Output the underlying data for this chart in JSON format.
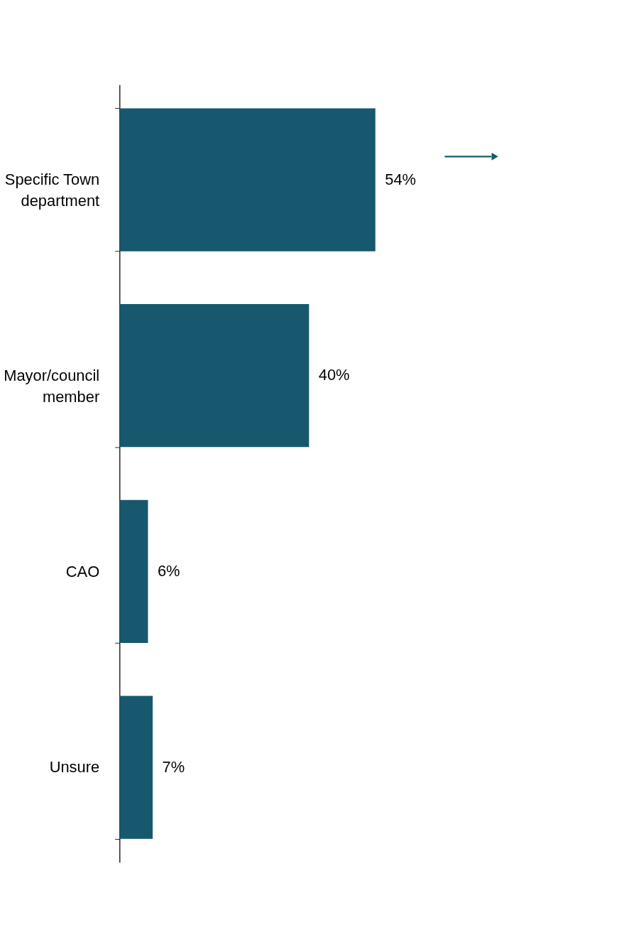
{
  "chart_data": {
    "type": "bar",
    "orientation": "horizontal",
    "categories": [
      "Specific Town\ndepartment",
      "Mayor/council\nmember",
      "CAO",
      "Unsure"
    ],
    "values": [
      54,
      40,
      6,
      7
    ],
    "value_labels": [
      "54%",
      "40%",
      "6%",
      "7%"
    ],
    "color": "#17586f"
  }
}
